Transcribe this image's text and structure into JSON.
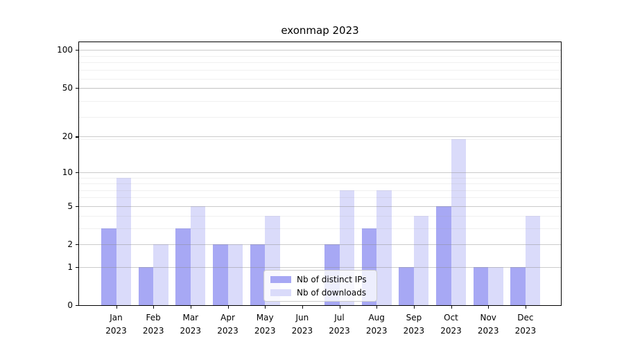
{
  "chart_data": {
    "type": "bar",
    "title": "exonmap 2023",
    "year_label": "2023",
    "categories": [
      "Jan",
      "Feb",
      "Mar",
      "Apr",
      "May",
      "Jun",
      "Jul",
      "Aug",
      "Sep",
      "Oct",
      "Nov",
      "Dec"
    ],
    "series": [
      {
        "name": "Nb of distinct IPs",
        "color": "#a7a8f4",
        "values": [
          3,
          1,
          3,
          2,
          2,
          0,
          2,
          3,
          1,
          5,
          1,
          1
        ]
      },
      {
        "name": "Nb of downloads",
        "color": "#dadbfa",
        "values": [
          9,
          2,
          5,
          2,
          4,
          0,
          7,
          7,
          4,
          19,
          1,
          4
        ]
      }
    ],
    "y_axis": {
      "scale": "log1p",
      "ticks": [
        0,
        1,
        2,
        5,
        10,
        20,
        50,
        100
      ],
      "minor_ticks": [
        3,
        4,
        6,
        7,
        8,
        9,
        19,
        29,
        39,
        49,
        59,
        69,
        79,
        89
      ],
      "min": 0,
      "max": 114.6
    },
    "x_axis": {
      "label": "",
      "tick_style": "month-over-year"
    },
    "grid": "on, drawn above bars",
    "legend_position": "lower center",
    "xlabel": "",
    "ylabel": ""
  }
}
